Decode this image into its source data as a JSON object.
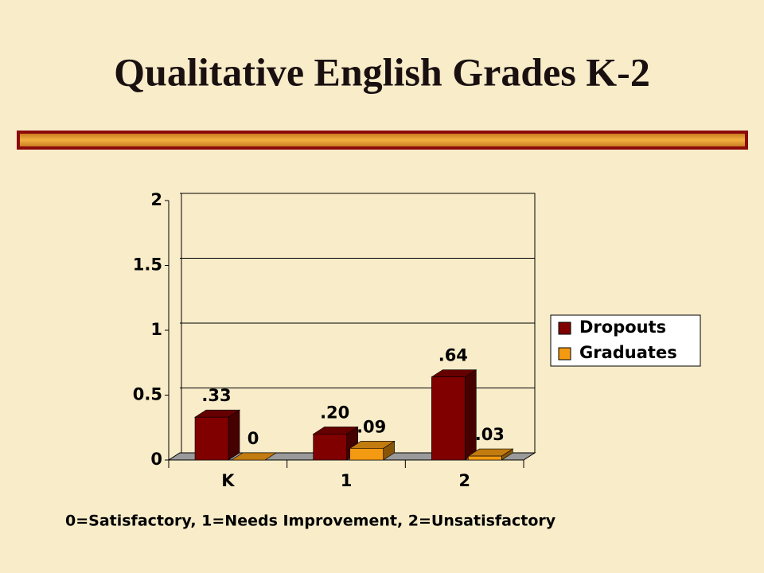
{
  "chart_data": {
    "type": "bar",
    "title": "Qualitative English Grades K-2",
    "categories": [
      "K",
      "1",
      "2"
    ],
    "series": [
      {
        "name": "Dropouts",
        "color": "#800000",
        "values": [
          0.33,
          0.2,
          0.64
        ],
        "value_labels": [
          ".33",
          ".20",
          ".64"
        ]
      },
      {
        "name": "Graduates",
        "color": "#f39a12",
        "values": [
          0,
          0.09,
          0.03
        ],
        "value_labels": [
          "0",
          ".09",
          ".03"
        ]
      }
    ],
    "ylim": [
      0,
      2
    ],
    "yticks": [
      0,
      0.5,
      1,
      1.5,
      2
    ],
    "grid": true,
    "legend": "right",
    "note": "0=Satisfactory, 1=Needs Improvement, 2=Unsatisfactory"
  }
}
